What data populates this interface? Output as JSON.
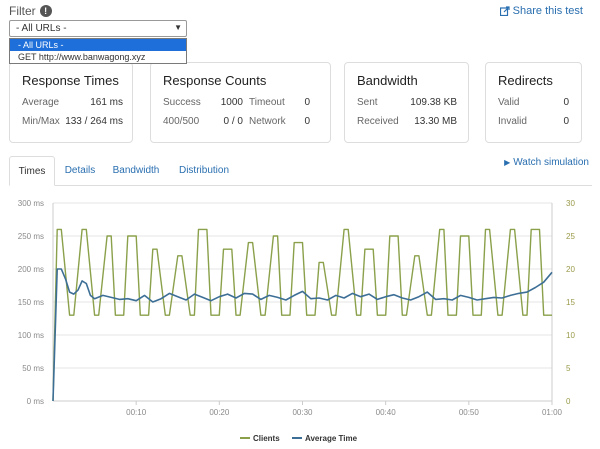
{
  "filter": {
    "label": "Filter",
    "info_glyph": "!",
    "selected": "- All URLs -",
    "options": [
      "- All URLs -",
      "GET http://www.banwagong.xyz"
    ]
  },
  "share": {
    "label": "Share this test",
    "icon": "share-icon"
  },
  "cards": {
    "response_times": {
      "title": "Response Times",
      "average_label": "Average",
      "average_value": "161 ms",
      "minmax_label": "Min/Max",
      "minmax_value": "133 / 264 ms"
    },
    "response_counts": {
      "title": "Response Counts",
      "success_label": "Success",
      "success_value": "1000",
      "timeout_label": "Timeout",
      "timeout_value": "0",
      "err_label": "400/500",
      "err_value": "0 / 0",
      "network_label": "Network",
      "network_value": "0"
    },
    "bandwidth": {
      "title": "Bandwidth",
      "sent_label": "Sent",
      "sent_value": "109.38 KB",
      "received_label": "Received",
      "received_value": "13.30 MB"
    },
    "redirects": {
      "title": "Redirects",
      "valid_label": "Valid",
      "valid_value": "0",
      "invalid_label": "Invalid",
      "invalid_value": "0"
    }
  },
  "tabs": [
    "Times",
    "Details",
    "Bandwidth",
    "Distribution"
  ],
  "active_tab": "Times",
  "watch": {
    "label": "Watch simulation",
    "icon": "play-icon"
  },
  "chart_data": {
    "type": "line",
    "title": "",
    "xlabel": "",
    "x_range_seconds": [
      0,
      60
    ],
    "x_ticks": [
      "00:10",
      "00:20",
      "00:30",
      "00:40",
      "00:50",
      "01:00"
    ],
    "y_left": {
      "ticks": [
        "0 ms",
        "50 ms",
        "100 ms",
        "150 ms",
        "200 ms",
        "250 ms",
        "300 ms"
      ],
      "range": [
        0,
        300
      ],
      "unit": "ms"
    },
    "y_right": {
      "ticks": [
        "0",
        "5",
        "10",
        "15",
        "20",
        "25",
        "30"
      ],
      "range": [
        0,
        30
      ]
    },
    "grid": true,
    "legend_position": "bottom",
    "colors": {
      "clients": "#8aa04a",
      "avg_time": "#3d6f96",
      "grid": "#e6e6e6",
      "axis_text": "#8a8a8a",
      "right_axis_text": "#9a9a4a"
    },
    "series": [
      {
        "name": "Clients",
        "axis": "right",
        "x": [
          0,
          0.5,
          1,
          2,
          2.5,
          3.5,
          4,
          5,
          5.5,
          6.5,
          7,
          7.5,
          8.5,
          9,
          10,
          10.5,
          11.5,
          12,
          12.5,
          13.5,
          14,
          15,
          15.5,
          16.5,
          17,
          17.5,
          18.5,
          19,
          20,
          20.5,
          21.5,
          22,
          22.5,
          23.5,
          24,
          25,
          25.5,
          26.5,
          27,
          27.5,
          28.5,
          29,
          30,
          30.5,
          31.5,
          32,
          32.5,
          33.5,
          34,
          35,
          35.5,
          36.5,
          37,
          37.5,
          38.5,
          39,
          40,
          40.5,
          41.5,
          42,
          42.5,
          43.5,
          44,
          45,
          45.5,
          46.5,
          47,
          47.5,
          48.5,
          49,
          50,
          50.5,
          51.5,
          52,
          52.5,
          53.5,
          54,
          55,
          55.5,
          56.5,
          57,
          57.5,
          58.5,
          59,
          60
        ],
        "values": [
          0,
          26,
          26,
          13,
          13,
          26,
          26,
          13,
          13,
          25,
          25,
          13,
          13,
          25,
          25,
          13,
          13,
          23,
          23,
          13,
          13,
          22,
          22,
          13,
          13,
          26,
          26,
          13,
          13,
          23,
          23,
          13,
          13,
          24,
          24,
          13,
          13,
          25,
          25,
          13,
          13,
          24,
          24,
          13,
          13,
          21,
          21,
          13,
          13,
          26,
          26,
          13,
          13,
          23,
          23,
          13,
          13,
          25,
          25,
          13,
          13,
          22,
          22,
          13,
          13,
          26,
          26,
          13,
          13,
          25,
          25,
          13,
          13,
          26,
          26,
          13,
          13,
          26,
          26,
          13,
          13,
          26,
          26,
          13,
          13
        ]
      },
      {
        "name": "Average Time",
        "axis": "left",
        "x": [
          0,
          0.5,
          1,
          1.5,
          2,
          2.5,
          3,
          3.5,
          4,
          4.5,
          5,
          6,
          7,
          8,
          9,
          10,
          11,
          12,
          13,
          14,
          15,
          16,
          17,
          18,
          19,
          20,
          21,
          22,
          23,
          24,
          25,
          26,
          27,
          28,
          29,
          30,
          31,
          32,
          33,
          34,
          35,
          36,
          37,
          38,
          39,
          40,
          41,
          42,
          43,
          44,
          45,
          46,
          47,
          48,
          49,
          50,
          51,
          52,
          53,
          54,
          55,
          56,
          57,
          58,
          59,
          60
        ],
        "values": [
          0,
          200,
          200,
          185,
          165,
          162,
          168,
          182,
          178,
          160,
          155,
          160,
          157,
          154,
          155,
          152,
          160,
          150,
          155,
          163,
          158,
          153,
          162,
          157,
          152,
          158,
          162,
          156,
          163,
          162,
          154,
          160,
          157,
          153,
          160,
          166,
          155,
          156,
          153,
          160,
          156,
          163,
          158,
          162,
          154,
          158,
          161,
          156,
          153,
          158,
          165,
          154,
          155,
          153,
          160,
          157,
          153,
          155,
          157,
          156,
          160,
          163,
          165,
          172,
          180,
          195
        ]
      }
    ]
  },
  "legend": [
    {
      "name": "Clients",
      "color": "#8aa04a"
    },
    {
      "name": "Average Time",
      "color": "#3d6f96"
    }
  ]
}
